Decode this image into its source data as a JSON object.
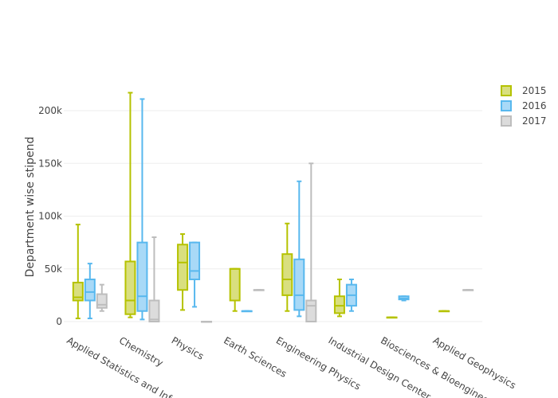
{
  "chart_data": {
    "type": "box",
    "title": "",
    "xlabel": "",
    "ylabel": "Department wise stipend",
    "ylim": [
      0,
      220000
    ],
    "yticks": [
      {
        "value": 0,
        "label": "0"
      },
      {
        "value": 50000,
        "label": "50k"
      },
      {
        "value": 100000,
        "label": "100k"
      },
      {
        "value": 150000,
        "label": "150k"
      },
      {
        "value": 200000,
        "label": "200k"
      }
    ],
    "grid": true,
    "legend_position": "top-right",
    "categories": [
      "Applied Statistics and Informatics",
      "Chemistry",
      "Physics",
      "Earth Sciences",
      "Engineering Physics",
      "Industrial Design Center",
      "Biosciences & Bioengineering",
      "Applied Geophysics"
    ],
    "category_labels": [
      "Applied Statistics and Info",
      "Chemistry",
      "Physics",
      "Earth Sciences",
      "Engineering Physics",
      "Industrial Design Center",
      "Biosciences & Bioengineeri",
      "Applied Geophysics"
    ],
    "series": [
      {
        "name": "2015",
        "line_color": "#b5c200",
        "fill_color": "#d9df7f",
        "boxes": [
          {
            "min": 3000,
            "q1": 20000,
            "median": 23000,
            "q3": 37000,
            "max": 92000
          },
          {
            "min": 4000,
            "q1": 7000,
            "median": 20000,
            "q3": 57000,
            "max": 217000
          },
          {
            "min": 11000,
            "q1": 30000,
            "median": 56000,
            "q3": 73000,
            "max": 83000
          },
          {
            "min": 10000,
            "q1": 20000,
            "median": 50000,
            "q3": 50000,
            "max": 50000
          },
          {
            "min": 10000,
            "q1": 25000,
            "median": 40000,
            "q3": 64000,
            "max": 93000
          },
          {
            "min": 5000,
            "q1": 8000,
            "median": 15000,
            "q3": 24000,
            "max": 40000
          },
          {
            "min": 4000,
            "q1": 4000,
            "median": 4000,
            "q3": 4000,
            "max": 4000
          },
          {
            "min": 10000,
            "q1": 10000,
            "median": 10000,
            "q3": 10000,
            "max": 10000
          }
        ]
      },
      {
        "name": "2016",
        "line_color": "#58b8ee",
        "fill_color": "#a8d9f7",
        "boxes": [
          {
            "min": 3000,
            "q1": 20000,
            "median": 28000,
            "q3": 40000,
            "max": 55000
          },
          {
            "min": 2000,
            "q1": 10000,
            "median": 24000,
            "q3": 75000,
            "max": 211000
          },
          {
            "min": 14000,
            "q1": 40000,
            "median": 48000,
            "q3": 75000,
            "max": 75000
          },
          {
            "min": 10000,
            "q1": 10000,
            "median": 10000,
            "q3": 10000,
            "max": 10000
          },
          {
            "min": 5000,
            "q1": 11000,
            "median": 25000,
            "q3": 59000,
            "max": 133000
          },
          {
            "min": 10000,
            "q1": 15000,
            "median": 25000,
            "q3": 35000,
            "max": 40000
          },
          {
            "min": 20000,
            "q1": 21000,
            "median": 22000,
            "q3": 24000,
            "max": 24000
          },
          null
        ]
      },
      {
        "name": "2017",
        "line_color": "#bdbdbd",
        "fill_color": "#dcdcdc",
        "boxes": [
          {
            "min": 10000,
            "q1": 13000,
            "median": 16000,
            "q3": 26000,
            "max": 35000
          },
          {
            "min": 0,
            "q1": 0,
            "median": 2000,
            "q3": 20000,
            "max": 80000
          },
          {
            "min": 0,
            "q1": 0,
            "median": 0,
            "q3": 0,
            "max": 0
          },
          {
            "min": 30000,
            "q1": 30000,
            "median": 30000,
            "q3": 30000,
            "max": 30000
          },
          {
            "min": 0,
            "q1": 0,
            "median": 15000,
            "q3": 20000,
            "max": 150000
          },
          null,
          null,
          {
            "min": 30000,
            "q1": 30000,
            "median": 30000,
            "q3": 30000,
            "max": 30000
          }
        ]
      }
    ]
  }
}
